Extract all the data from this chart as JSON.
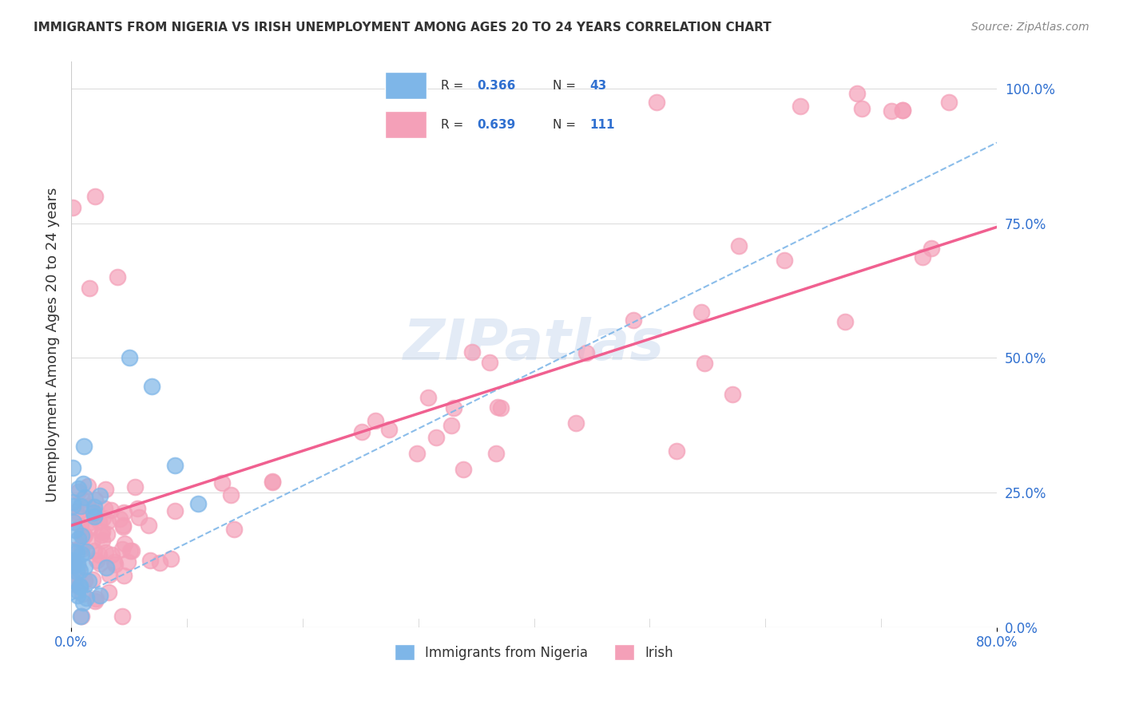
{
  "title": "IMMIGRANTS FROM NIGERIA VS IRISH UNEMPLOYMENT AMONG AGES 20 TO 24 YEARS CORRELATION CHART",
  "source": "Source: ZipAtlas.com",
  "ylabel": "Unemployment Among Ages 20 to 24 years",
  "ytick_labels": [
    "0.0%",
    "25.0%",
    "50.0%",
    "75.0%",
    "100.0%"
  ],
  "ytick_values": [
    0.0,
    0.25,
    0.5,
    0.75,
    1.0
  ],
  "legend_bottom1": "Immigrants from Nigeria",
  "legend_bottom2": "Irish",
  "blue_color": "#7EB6E8",
  "pink_color": "#F4A0B8",
  "blue_line_color": "#7EB6E8",
  "pink_line_color": "#F06090",
  "r_value_color": "#3070D0",
  "xlim": [
    0.0,
    0.8
  ],
  "ylim": [
    0.0,
    1.05
  ],
  "watermark": "ZIPatlas",
  "bg_color": "#FFFFFF",
  "grid_color": "#DDDDDD"
}
